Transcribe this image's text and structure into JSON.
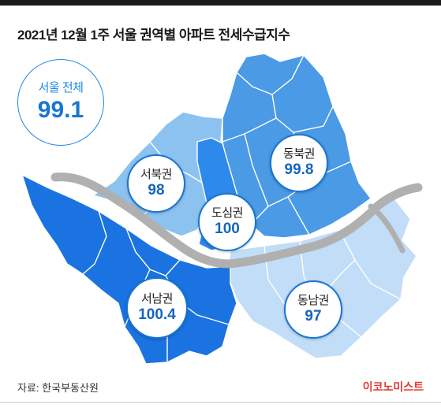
{
  "title": "2021년 12월 1주 서울 권역별 아파트 전세수급지수",
  "overall": {
    "label": "서울 전체",
    "value": "99.1"
  },
  "regions": [
    {
      "id": "seobuk",
      "label": "서북권",
      "value": "98",
      "color": "#8cc2f0"
    },
    {
      "id": "dongbuk",
      "label": "동북권",
      "value": "99.8",
      "color": "#4a9ae6"
    },
    {
      "id": "dosim",
      "label": "도심권",
      "value": "100",
      "color": "#2d8aec"
    },
    {
      "id": "seonam",
      "label": "서남권",
      "value": "100.4",
      "color": "#1a73e0"
    },
    {
      "id": "dongnam",
      "label": "동남권",
      "value": "97",
      "color": "#c2ddf7"
    }
  ],
  "river_color": "#b0b0b0",
  "source": "자료: 한국부동산원",
  "brand": "이코노미스트"
}
